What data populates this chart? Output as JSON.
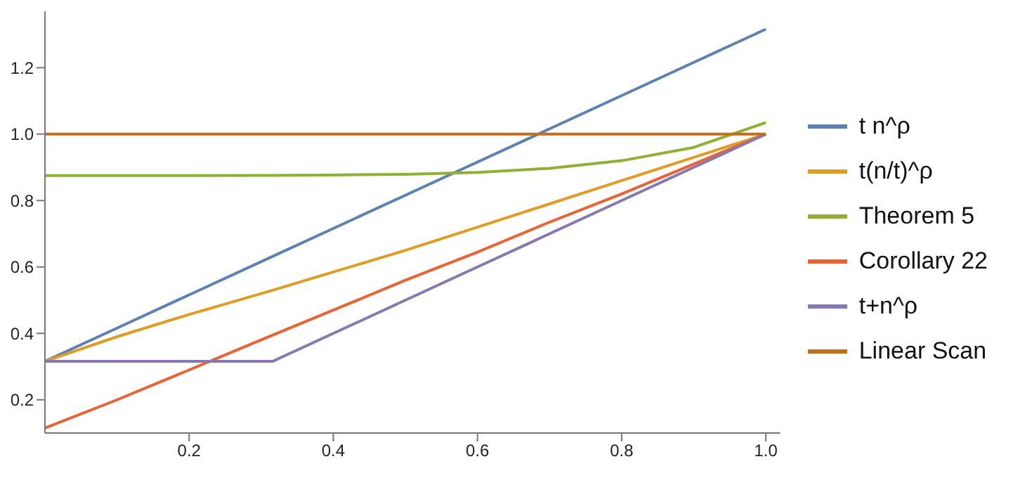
{
  "chart_data": {
    "type": "line",
    "x": [
      0,
      0.1,
      0.2,
      0.316,
      0.4,
      0.5,
      0.6,
      0.7,
      0.8,
      0.9,
      1.0
    ],
    "xlim": [
      0,
      1.02
    ],
    "xticks": [
      0.2,
      0.4,
      0.6,
      0.8,
      {
        "value": 1,
        "label": "1.0"
      }
    ],
    "ylim": [
      0.1,
      1.37
    ],
    "yticks": [
      0.2,
      0.4,
      0.6,
      0.8,
      {
        "value": 1,
        "label": "1.0"
      },
      1.2
    ],
    "grid": false,
    "legend": "right",
    "marker": "none",
    "line_style": "solid",
    "series": [
      {
        "name": "t n^ρ",
        "color": "#5e81b5",
        "values": [
          0.316,
          0.416,
          0.516,
          0.632,
          0.716,
          0.816,
          0.916,
          1.016,
          1.116,
          1.216,
          1.316
        ]
      },
      {
        "name": "t(n/t)^ρ",
        "color": "#e19c24",
        "values": [
          0.316,
          0.39,
          0.457,
          0.53,
          0.585,
          0.65,
          0.72,
          0.79,
          0.86,
          0.93,
          1.0
        ]
      },
      {
        "name": "Theorem 5",
        "color": "#8fb032",
        "values": [
          0.875,
          0.875,
          0.875,
          0.876,
          0.877,
          0.879,
          0.885,
          0.897,
          0.92,
          0.96,
          1.035
        ]
      },
      {
        "name": "Corollary 22",
        "color": "#eb6235",
        "values": [
          0.115,
          0.2,
          0.29,
          0.395,
          0.47,
          0.56,
          0.645,
          0.735,
          0.82,
          0.91,
          1.0
        ]
      },
      {
        "name": "t+n^ρ",
        "color": "#8778b3",
        "values": [
          0.316,
          0.316,
          0.316,
          0.316,
          0.4,
          0.5,
          0.6,
          0.7,
          0.8,
          0.9,
          1.0
        ]
      },
      {
        "name": "Linear Scan",
        "color": "#c56e1a",
        "values": [
          1,
          1,
          1,
          1,
          1,
          1,
          1,
          1,
          1,
          1,
          1
        ]
      }
    ]
  }
}
